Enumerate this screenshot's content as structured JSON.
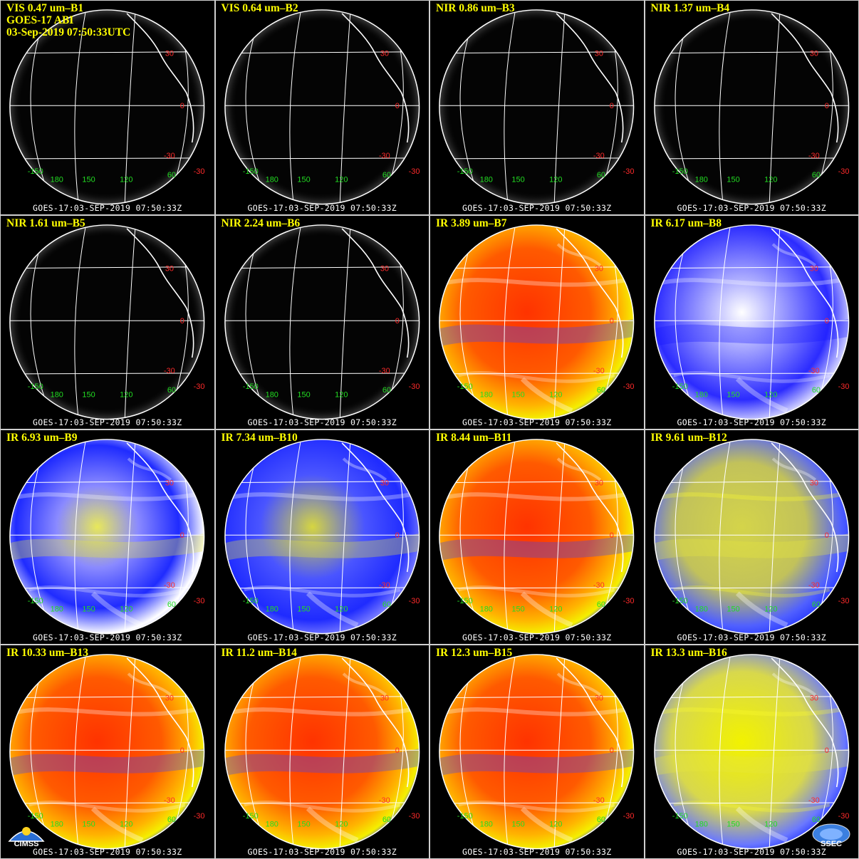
{
  "header": {
    "satellite": "GOES-17 ABI",
    "datetime": "03-Sep-2019 07:50:33UTC"
  },
  "footer_text": "GOES-17:03-SEP-2019 07:50:33Z",
  "colors": {
    "title": "#ffff00",
    "lat_label": "#ff2a2a",
    "lon_label": "#22dd22",
    "grid": "#ffffff"
  },
  "latitude_labels": [
    "30",
    "0",
    "-30",
    "-30"
  ],
  "longitude_labels": [
    "-150",
    "180",
    "150",
    "120",
    "60"
  ],
  "panels": [
    {
      "title": "VIS 0.47 um–B1",
      "style": "dark"
    },
    {
      "title": "VIS 0.64 um–B2",
      "style": "dark"
    },
    {
      "title": "NIR 0.86 um–B3",
      "style": "dark"
    },
    {
      "title": "NIR 1.37 um–B4",
      "style": "dark"
    },
    {
      "title": "NIR 1.61 um–B5",
      "style": "dark"
    },
    {
      "title": "NIR 2.24 um–B6",
      "style": "dark"
    },
    {
      "title": "IR 3.89 um–B7",
      "style": "ir"
    },
    {
      "title": "IR 6.17 um–B8",
      "style": "wv1"
    },
    {
      "title": "IR 6.93 um–B9",
      "style": "wv2"
    },
    {
      "title": "IR 7.34 um–B10",
      "style": "wv3"
    },
    {
      "title": "IR 8.44 um–B11",
      "style": "ir"
    },
    {
      "title": "IR 9.61 um–B12",
      "style": "oz"
    },
    {
      "title": "IR 10.33 um–B13",
      "style": "ir"
    },
    {
      "title": "IR 11.2 um–B14",
      "style": "ir"
    },
    {
      "title": "IR 12.3 um–B15",
      "style": "ir"
    },
    {
      "title": "IR 13.3 um–B16",
      "style": "co2"
    }
  ],
  "logos": {
    "cimss": "CIMSS",
    "ssec": "SSEC"
  }
}
